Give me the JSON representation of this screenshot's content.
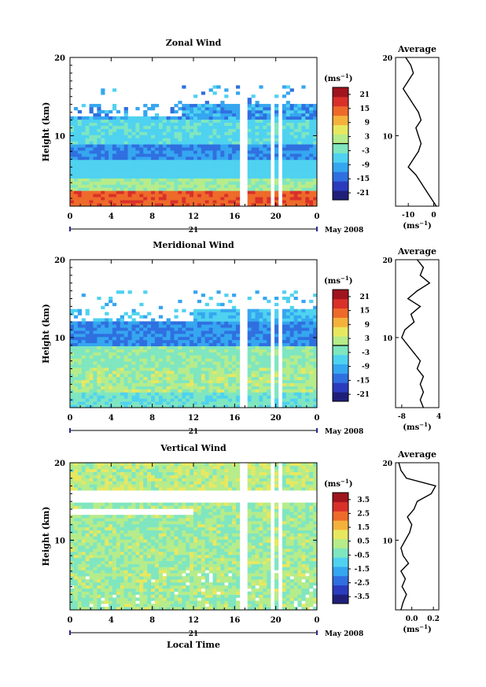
{
  "chart_data": [
    {
      "type": "heatmap",
      "title": "Zonal Wind",
      "ylabel": "Height (km)",
      "xlabel": "",
      "x_ticks": [
        "0",
        "4",
        "8",
        "12",
        "16",
        "20",
        "0"
      ],
      "y_ticks": [
        "10",
        "20"
      ],
      "ylim": [
        1,
        20
      ],
      "xlim": [
        0,
        24
      ],
      "date_label": "21",
      "date_suffix": "May 2008",
      "colorbar": {
        "unit_label": "(ms",
        "unit_exp": "−1",
        "unit_close": ")",
        "ticks": [
          "21",
          "15",
          "9",
          "3",
          "-3",
          "-9",
          "-15",
          "-21"
        ],
        "range": [
          -24,
          24
        ],
        "contour_level": 0
      },
      "profile": {
        "title": "Average",
        "x_ticks": [
          "-10",
          "0"
        ],
        "xlim": [
          -15,
          2
        ],
        "y_ticks": [
          "10",
          "20"
        ],
        "ylim": [
          1,
          20
        ],
        "xlabel_main": "(ms",
        "xlabel_exp": "−1",
        "xlabel_close": ")",
        "height": [
          1,
          2,
          3,
          4,
          5,
          6,
          7,
          8,
          9,
          10,
          11,
          12,
          13,
          14,
          15,
          16,
          17,
          18,
          19,
          20
        ],
        "values": [
          1,
          -1,
          -3,
          -5,
          -7,
          -10,
          -8,
          -6,
          -5,
          -6,
          -7,
          -5,
          -6,
          -8,
          -10,
          -12,
          -10,
          -8,
          -9,
          -11
        ]
      }
    },
    {
      "type": "heatmap",
      "title": "Meridional Wind",
      "ylabel": "Height (km)",
      "xlabel": "",
      "x_ticks": [
        "0",
        "4",
        "8",
        "12",
        "16",
        "20",
        "0"
      ],
      "y_ticks": [
        "10",
        "20"
      ],
      "ylim": [
        1,
        20
      ],
      "xlim": [
        0,
        24
      ],
      "date_label": "21",
      "date_suffix": "May 2008",
      "colorbar": {
        "unit_label": "(ms",
        "unit_exp": "−1",
        "unit_close": ")",
        "ticks": [
          "21",
          "15",
          "9",
          "3",
          "-3",
          "-9",
          "-15",
          "-21"
        ],
        "range": [
          -24,
          24
        ],
        "contour_level": 0
      },
      "profile": {
        "title": "Average",
        "x_ticks": [
          "-8",
          "4"
        ],
        "xlim": [
          -10,
          4
        ],
        "y_ticks": [
          "10",
          "20"
        ],
        "ylim": [
          1,
          20
        ],
        "xlabel_main": "(ms",
        "xlabel_exp": "−1",
        "xlabel_close": ")",
        "height": [
          1,
          2,
          3,
          4,
          5,
          6,
          7,
          8,
          9,
          10,
          11,
          12,
          13,
          14,
          15,
          16,
          17,
          18,
          19,
          20
        ],
        "values": [
          -1,
          -2,
          -1,
          -2,
          -1,
          -3,
          -2,
          -4,
          -6,
          -8,
          -7,
          -4,
          -5,
          -2,
          -6,
          -3,
          1,
          -2,
          -1,
          -3
        ]
      }
    },
    {
      "type": "heatmap",
      "title": "Vertical Wind",
      "ylabel": "Height (km)",
      "xlabel": "Local Time",
      "x_ticks": [
        "0",
        "4",
        "8",
        "12",
        "16",
        "20",
        "0"
      ],
      "y_ticks": [
        "10",
        "20"
      ],
      "ylim": [
        1,
        20
      ],
      "xlim": [
        0,
        24
      ],
      "date_label": "21",
      "date_suffix": "May 2008",
      "colorbar": {
        "unit_label": "(ms",
        "unit_exp": "−1",
        "unit_close": ")",
        "ticks": [
          "3.5",
          "2.5",
          "1.5",
          "0.5",
          "-0.5",
          "-1.5",
          "-2.5",
          "-3.5"
        ],
        "range": [
          -4,
          4
        ],
        "contour_level": null
      },
      "profile": {
        "title": "Average",
        "x_ticks": [
          "0.0",
          "0.2"
        ],
        "xlim": [
          -0.15,
          0.25
        ],
        "y_ticks": [
          "10",
          "20"
        ],
        "ylim": [
          1,
          20
        ],
        "xlabel_main": "(ms",
        "xlabel_exp": "−1",
        "xlabel_close": ")",
        "height": [
          1,
          2,
          3,
          4,
          5,
          6,
          7,
          8,
          9,
          10,
          11,
          12,
          13,
          14,
          15,
          16,
          17,
          18,
          19,
          20
        ],
        "values": [
          -0.1,
          -0.08,
          -0.05,
          -0.09,
          -0.06,
          -0.1,
          -0.03,
          -0.08,
          -0.1,
          -0.06,
          -0.02,
          0.0,
          -0.04,
          0.02,
          0.05,
          0.18,
          0.22,
          -0.05,
          -0.1,
          -0.12
        ]
      }
    }
  ]
}
